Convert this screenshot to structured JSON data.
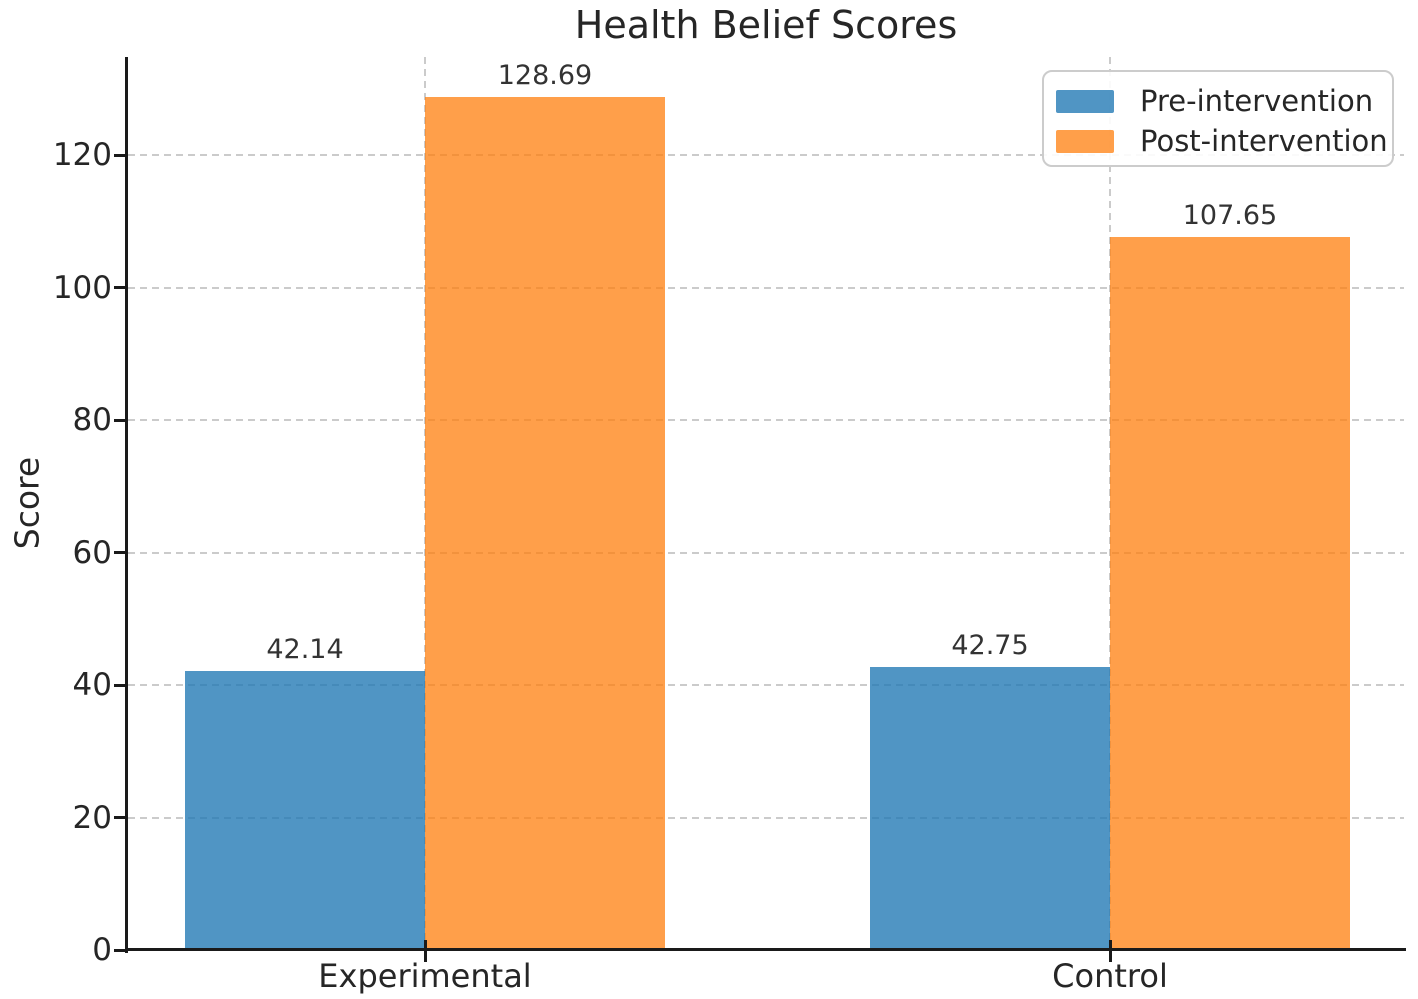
{
  "figure": {
    "title": "Health Belief Scores"
  },
  "chart_data": {
    "type": "bar",
    "title": "Health Belief Scores",
    "xlabel": "",
    "ylabel": "Score",
    "categories": [
      "Experimental",
      "Control"
    ],
    "series": [
      {
        "name": "Pre-intervention",
        "color": "#1f77b4",
        "fill": "rgba(31,119,180,0.78)",
        "values": [
          42.14,
          42.75
        ],
        "value_labels": [
          "42.14",
          "42.75"
        ]
      },
      {
        "name": "Post-intervention",
        "color": "#ff7f0e",
        "fill": "rgba(255,127,14,0.75)",
        "values": [
          128.69,
          107.65
        ],
        "value_labels": [
          "128.69",
          "107.65"
        ]
      }
    ],
    "yticks": [
      0,
      20,
      40,
      60,
      80,
      100,
      120
    ],
    "ylim": [
      0,
      134.8
    ],
    "grid": true,
    "grid_style": "dashed",
    "grid_color": "#cbcbcb",
    "legend_position": "upper right",
    "axis_color": "#1a1a1a",
    "text_color": "#262626"
  }
}
